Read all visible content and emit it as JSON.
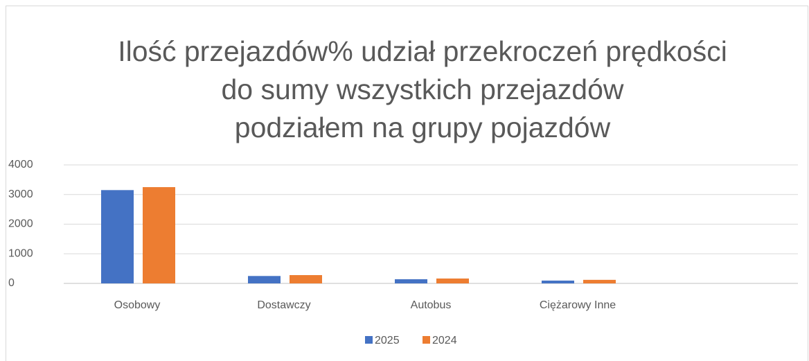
{
  "chart_data": {
    "type": "bar",
    "title": [
      "Ilość przejazdów% udział przekroczeń prędkości",
      "do sumy wszystkich przejazdów",
      "podziałem na grupy pojazdów"
    ],
    "categories": [
      "Osobowy",
      "Dostawczy",
      "Autobus",
      "Ciężarowy Inne",
      null
    ],
    "series": [
      {
        "name": "2025",
        "color": "#4472c4",
        "values": [
          3150,
          250,
          140,
          95,
          null
        ]
      },
      {
        "name": "2024",
        "color": "#ed7d31",
        "values": [
          3250,
          280,
          165,
          120,
          null
        ]
      }
    ],
    "ylim": [
      0,
      4000
    ],
    "yticks": [
      0,
      1000,
      2000,
      3000,
      4000
    ],
    "grid": true,
    "legend": "bottom"
  }
}
